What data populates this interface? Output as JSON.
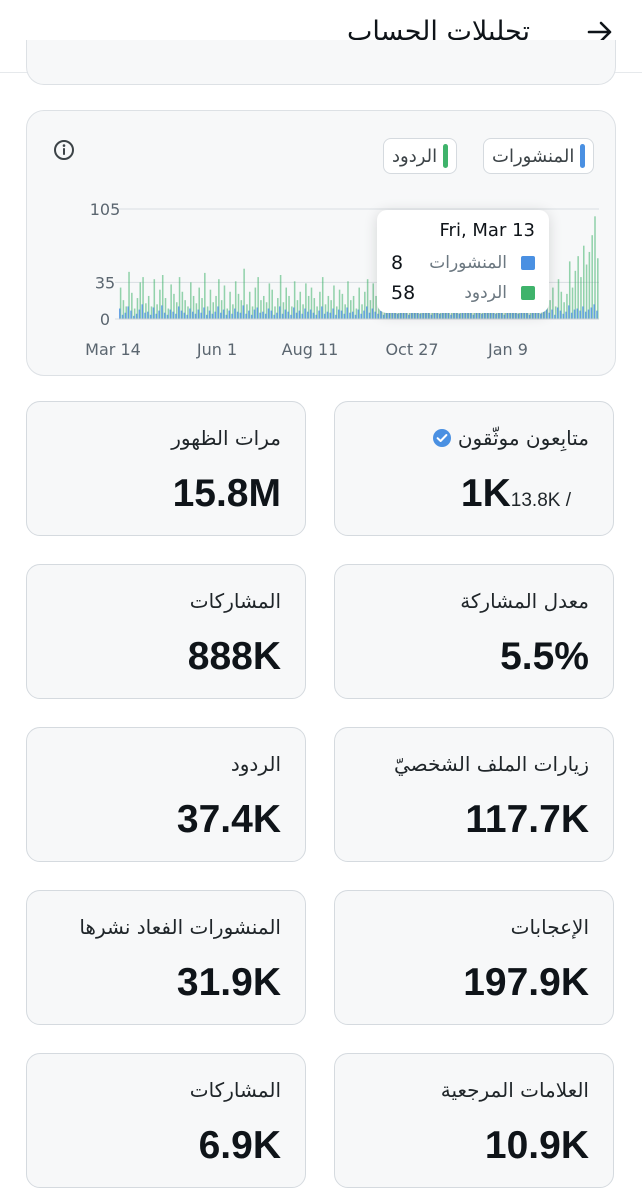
{
  "header": {
    "title": "تحليلات الحساب"
  },
  "chart": {
    "legend": [
      {
        "label": "المنشورات",
        "color": "#4a90e2"
      },
      {
        "label": "الردود",
        "color": "#3fb36b"
      }
    ],
    "tooltip": {
      "date": "Fri, Mar 13",
      "rows": [
        {
          "label": "المنشورات",
          "value": "8",
          "color": "#4a90e2"
        },
        {
          "label": "الردود",
          "value": "58",
          "color": "#3fb36b"
        }
      ]
    }
  },
  "chart_data": {
    "type": "bar",
    "x_ticks": [
      "Mar 14",
      "Jun 1",
      "Aug 11",
      "Oct 27",
      "Jan 9"
    ],
    "y_ticks": [
      0,
      35,
      105
    ],
    "ylim": [
      0,
      105
    ],
    "series": [
      {
        "name": "المنشورات",
        "color": "#4a90e2",
        "values": [
          10,
          4,
          6,
          12,
          8,
          3,
          5,
          9,
          14,
          6,
          7,
          4,
          11,
          5,
          8,
          13,
          6,
          4,
          9,
          7,
          5,
          12,
          8,
          6,
          4,
          10,
          7,
          5,
          9,
          6,
          11,
          4,
          8,
          5,
          7,
          12,
          6,
          9,
          4,
          8,
          5,
          10,
          7,
          6,
          13,
          5,
          8,
          4,
          9,
          11,
          6,
          7,
          5,
          10,
          8,
          4,
          6,
          12,
          5,
          9,
          7,
          4,
          11,
          6,
          8,
          5,
          10,
          7,
          9,
          6,
          4,
          8,
          12,
          5,
          7,
          6,
          10,
          4,
          9,
          8,
          5,
          11,
          6,
          7,
          4,
          9,
          5,
          8,
          12,
          6,
          10,
          7,
          5,
          8,
          4,
          9,
          6,
          11,
          7,
          5,
          8,
          10,
          6,
          4,
          9,
          7,
          12,
          5,
          8,
          6,
          10,
          4,
          7,
          9,
          5,
          11,
          8,
          6,
          4,
          10,
          7,
          5,
          9,
          12,
          6,
          8,
          4,
          11,
          7,
          5,
          9,
          6,
          10,
          8,
          5,
          12,
          7,
          4,
          9,
          6,
          8,
          11,
          5,
          10,
          7,
          6,
          4,
          9,
          8,
          12,
          5,
          7,
          10,
          6,
          9,
          4,
          11,
          8,
          5,
          7,
          13,
          6,
          9,
          10,
          8,
          12,
          7,
          9,
          11,
          14,
          8
        ]
      },
      {
        "name": "الردود",
        "color": "#3fb36b",
        "values": [
          30,
          18,
          12,
          45,
          25,
          10,
          20,
          35,
          40,
          15,
          22,
          12,
          38,
          14,
          28,
          42,
          20,
          10,
          33,
          24,
          16,
          40,
          26,
          18,
          12,
          35,
          22,
          15,
          30,
          20,
          44,
          12,
          28,
          16,
          22,
          38,
          18,
          32,
          10,
          26,
          14,
          36,
          24,
          18,
          48,
          14,
          26,
          12,
          30,
          40,
          18,
          22,
          16,
          34,
          28,
          12,
          20,
          42,
          16,
          30,
          22,
          12,
          36,
          18,
          26,
          14,
          34,
          22,
          30,
          20,
          12,
          26,
          40,
          14,
          22,
          18,
          32,
          12,
          28,
          24,
          14,
          36,
          18,
          22,
          10,
          30,
          14,
          26,
          38,
          18,
          34,
          22,
          14,
          24,
          12,
          28,
          18,
          36,
          22,
          14,
          26,
          32,
          16,
          10,
          28,
          22,
          40,
          14,
          26,
          18,
          32,
          12,
          22,
          30,
          14,
          36,
          26,
          18,
          12,
          34,
          22,
          14,
          28,
          40,
          18,
          26,
          12,
          36,
          20,
          14,
          28,
          18,
          34,
          24,
          14,
          40,
          22,
          12,
          30,
          18,
          24,
          36,
          14,
          32,
          20,
          18,
          12,
          30,
          26,
          44,
          16,
          22,
          34,
          18,
          30,
          12,
          38,
          26,
          16,
          24,
          55,
          30,
          46,
          60,
          40,
          70,
          52,
          64,
          80,
          98,
          58
        ]
      }
    ]
  },
  "stats": [
    {
      "label": "متابِعون موثّقون",
      "value": "1K",
      "sub": "13.8K /",
      "verified": true
    },
    {
      "label": "مرات الظهور",
      "value": "15.8M"
    },
    {
      "label": "معدل المشاركة",
      "value": "5.5%"
    },
    {
      "label": "المشاركات",
      "value": "888K"
    },
    {
      "label": "زيارات الملف الشخصيّ",
      "value": "117.7K"
    },
    {
      "label": "الردود",
      "value": "37.4K"
    },
    {
      "label": "الإعجابات",
      "value": "197.9K"
    },
    {
      "label": "المنشورات الفعاد نشرها",
      "value": "31.9K"
    },
    {
      "label": "العلامات المرجعية",
      "value": "10.9K"
    },
    {
      "label": "المشاركات",
      "value": "6.9K"
    }
  ]
}
